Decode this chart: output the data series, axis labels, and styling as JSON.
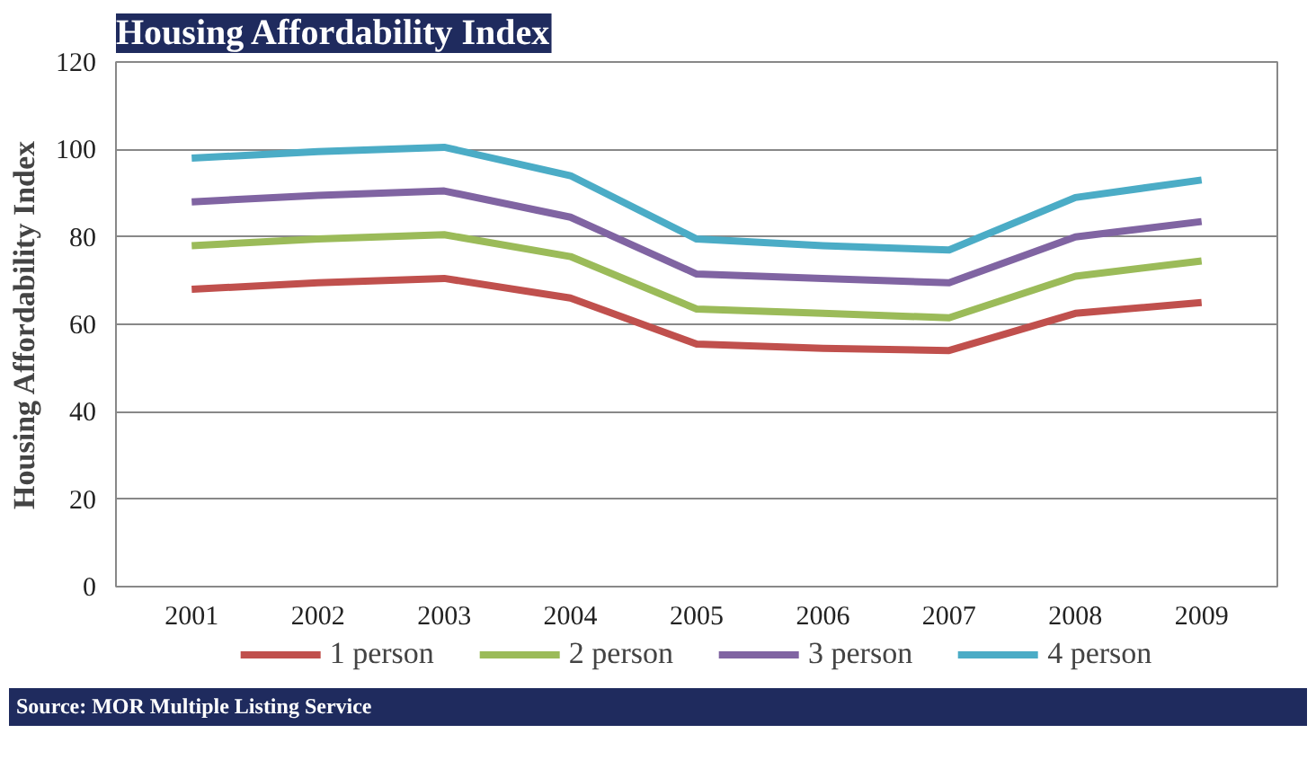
{
  "chart_data": {
    "type": "line",
    "title": "Housing Affordability Index",
    "ylabel": "Housing Affordability Index",
    "categories": [
      "2001",
      "2002",
      "2003",
      "2004",
      "2005",
      "2006",
      "2007",
      "2008",
      "2009"
    ],
    "series": [
      {
        "name": "1 person",
        "color": "#c0504d",
        "values": [
          68,
          69.5,
          70.5,
          66,
          55.5,
          54.5,
          54,
          62.5,
          65
        ]
      },
      {
        "name": "2 person",
        "color": "#9bbb59",
        "values": [
          78,
          79.5,
          80.5,
          75.5,
          63.5,
          62.5,
          61.5,
          71,
          74.5
        ]
      },
      {
        "name": "3 person",
        "color": "#8064a2",
        "values": [
          88,
          89.5,
          90.5,
          84.5,
          71.5,
          70.5,
          69.5,
          80,
          83.5
        ]
      },
      {
        "name": "4 person",
        "color": "#4bacc6",
        "values": [
          98,
          99.5,
          100.5,
          94,
          79.5,
          78,
          77,
          89,
          93
        ]
      }
    ],
    "ylim": [
      0,
      120
    ],
    "yticks": [
      0,
      20,
      40,
      60,
      80,
      100,
      120
    ],
    "grid": "y",
    "legend": "bottom",
    "marker": "none",
    "line_style": "solid",
    "annotations": [
      "Source: MOR Multiple Listing Service"
    ]
  }
}
